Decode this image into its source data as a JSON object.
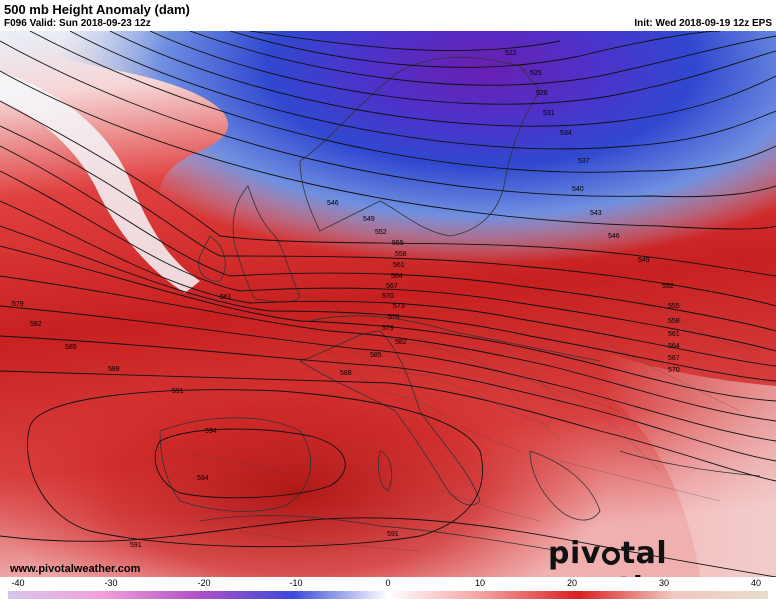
{
  "header": {
    "title": "500 mb Height Anomaly (dam)",
    "valid": "F096 Valid: Sun 2018-09-23 12z",
    "init": "Init: Wed 2018-09-19 12z EPS"
  },
  "footer": {
    "url": "www.pivotalweather.com",
    "brand_left": "pivotal",
    "brand_right": "weather"
  },
  "colorbar": {
    "ticks": [
      "-40",
      "-30",
      "-20",
      "-10",
      "0",
      "10",
      "20",
      "30",
      "40"
    ],
    "colors": {
      "neg40": "#d9c6ec",
      "neg30": "#f0a0d8",
      "neg20": "#b050c8",
      "neg10": "#3a4ad8",
      "zero": "#ffffff",
      "pos10": "#f4a0a0",
      "pos20": "#d82020",
      "pos30": "#f0c8c0",
      "pos40": "#e6dccc"
    }
  },
  "contour_labels": {
    "north": [
      "522",
      "525",
      "528",
      "531",
      "534",
      "537",
      "540",
      "543",
      "546"
    ],
    "center": [
      "546",
      "549",
      "552",
      "555",
      "558",
      "561",
      "564",
      "567",
      "570",
      "573",
      "576",
      "579",
      "582",
      "585",
      "588"
    ],
    "east": [
      "549",
      "552",
      "555",
      "558",
      "561",
      "564",
      "567",
      "570"
    ],
    "west": [
      "561",
      "579",
      "582",
      "585",
      "588",
      "591"
    ],
    "south": [
      "594",
      "594",
      "591",
      "591"
    ]
  },
  "map": {
    "region": "Europe and North Africa",
    "colors": {
      "deep_purple": "#6a1fb0",
      "blue": "#3048d0",
      "light_blue": "#a8c4ec",
      "white": "#ffffff",
      "pink": "#f0b4b4",
      "red": "#d42a2a",
      "dark_red": "#a81818"
    }
  }
}
